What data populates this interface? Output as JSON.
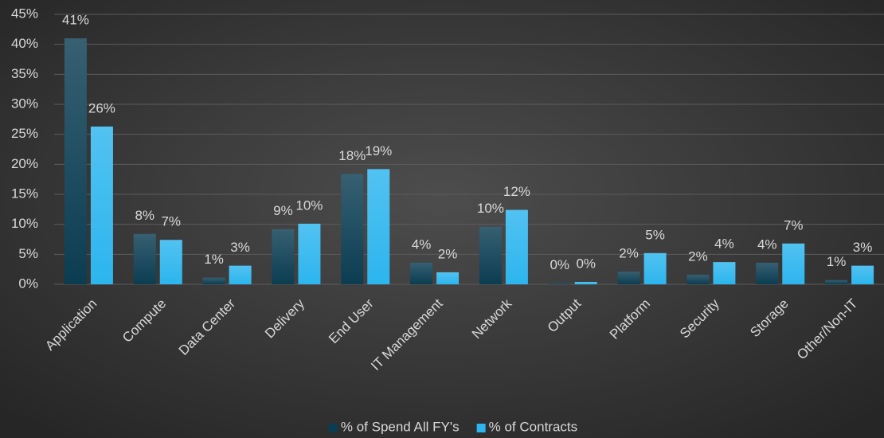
{
  "chart_data": {
    "type": "bar",
    "categories": [
      "Application",
      "Compute",
      "Data Center",
      "Delivery",
      "End User",
      "IT Management",
      "Network",
      "Output",
      "Platform",
      "Security",
      "Storage",
      "Other/Non-IT"
    ],
    "series": [
      {
        "name": "% of Spend All FY's",
        "color": "#0b3d52",
        "values": [
          41,
          8.4,
          1.1,
          9.2,
          18.4,
          3.6,
          9.6,
          0.2,
          2.1,
          1.6,
          3.6,
          0.7
        ],
        "value_labels": [
          "41%",
          "8%",
          "1%",
          "9%",
          "18%",
          "4%",
          "10%",
          "0%",
          "2%",
          "2%",
          "4%",
          "1%"
        ]
      },
      {
        "name": "% of Contracts",
        "color": "#2cb5ee",
        "values": [
          26.3,
          7.4,
          3.1,
          10.1,
          19.2,
          2.0,
          12.4,
          0.4,
          5.2,
          3.7,
          6.8,
          3.1
        ],
        "value_labels": [
          "26%",
          "7%",
          "3%",
          "10%",
          "19%",
          "2%",
          "12%",
          "0%",
          "5%",
          "4%",
          "7%",
          "3%"
        ]
      }
    ],
    "ylim": [
      0,
      45
    ],
    "yticks": [
      {
        "value": 0,
        "label": "0%"
      },
      {
        "value": 5,
        "label": "5%"
      },
      {
        "value": 10,
        "label": "10%"
      },
      {
        "value": 15,
        "label": "15%"
      },
      {
        "value": 20,
        "label": "20%"
      },
      {
        "value": 25,
        "label": "25%"
      },
      {
        "value": 30,
        "label": "30%"
      },
      {
        "value": 35,
        "label": "35%"
      },
      {
        "value": 40,
        "label": "40%"
      },
      {
        "value": 45,
        "label": "45%"
      }
    ],
    "grid": true,
    "legend": "bottom"
  }
}
